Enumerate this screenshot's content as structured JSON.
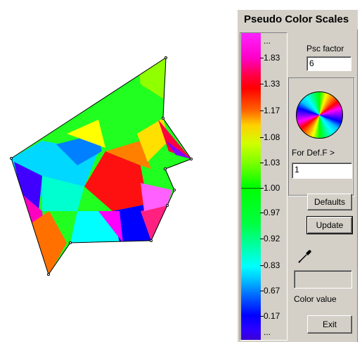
{
  "window": {
    "title": "Pseudo Color Scales"
  },
  "scale": {
    "top_label": "...",
    "bottom_label": "...",
    "ticks": [
      "1.83",
      "1.33",
      "1.17",
      "1.08",
      "1.03",
      "1.00",
      "0.97",
      "0.92",
      "0.83",
      "0.67",
      "0.17"
    ]
  },
  "psc_factor": {
    "label": "Psc factor",
    "value": "6"
  },
  "def_f": {
    "label": "For Def.F >",
    "value": "1"
  },
  "buttons": {
    "defaults": "Defaults",
    "update": "Update",
    "exit": "Exit"
  },
  "color_value": {
    "label": "Color value",
    "value": ""
  },
  "icons": {
    "picker": "eyedropper-icon",
    "wheel": "color-wheel"
  }
}
